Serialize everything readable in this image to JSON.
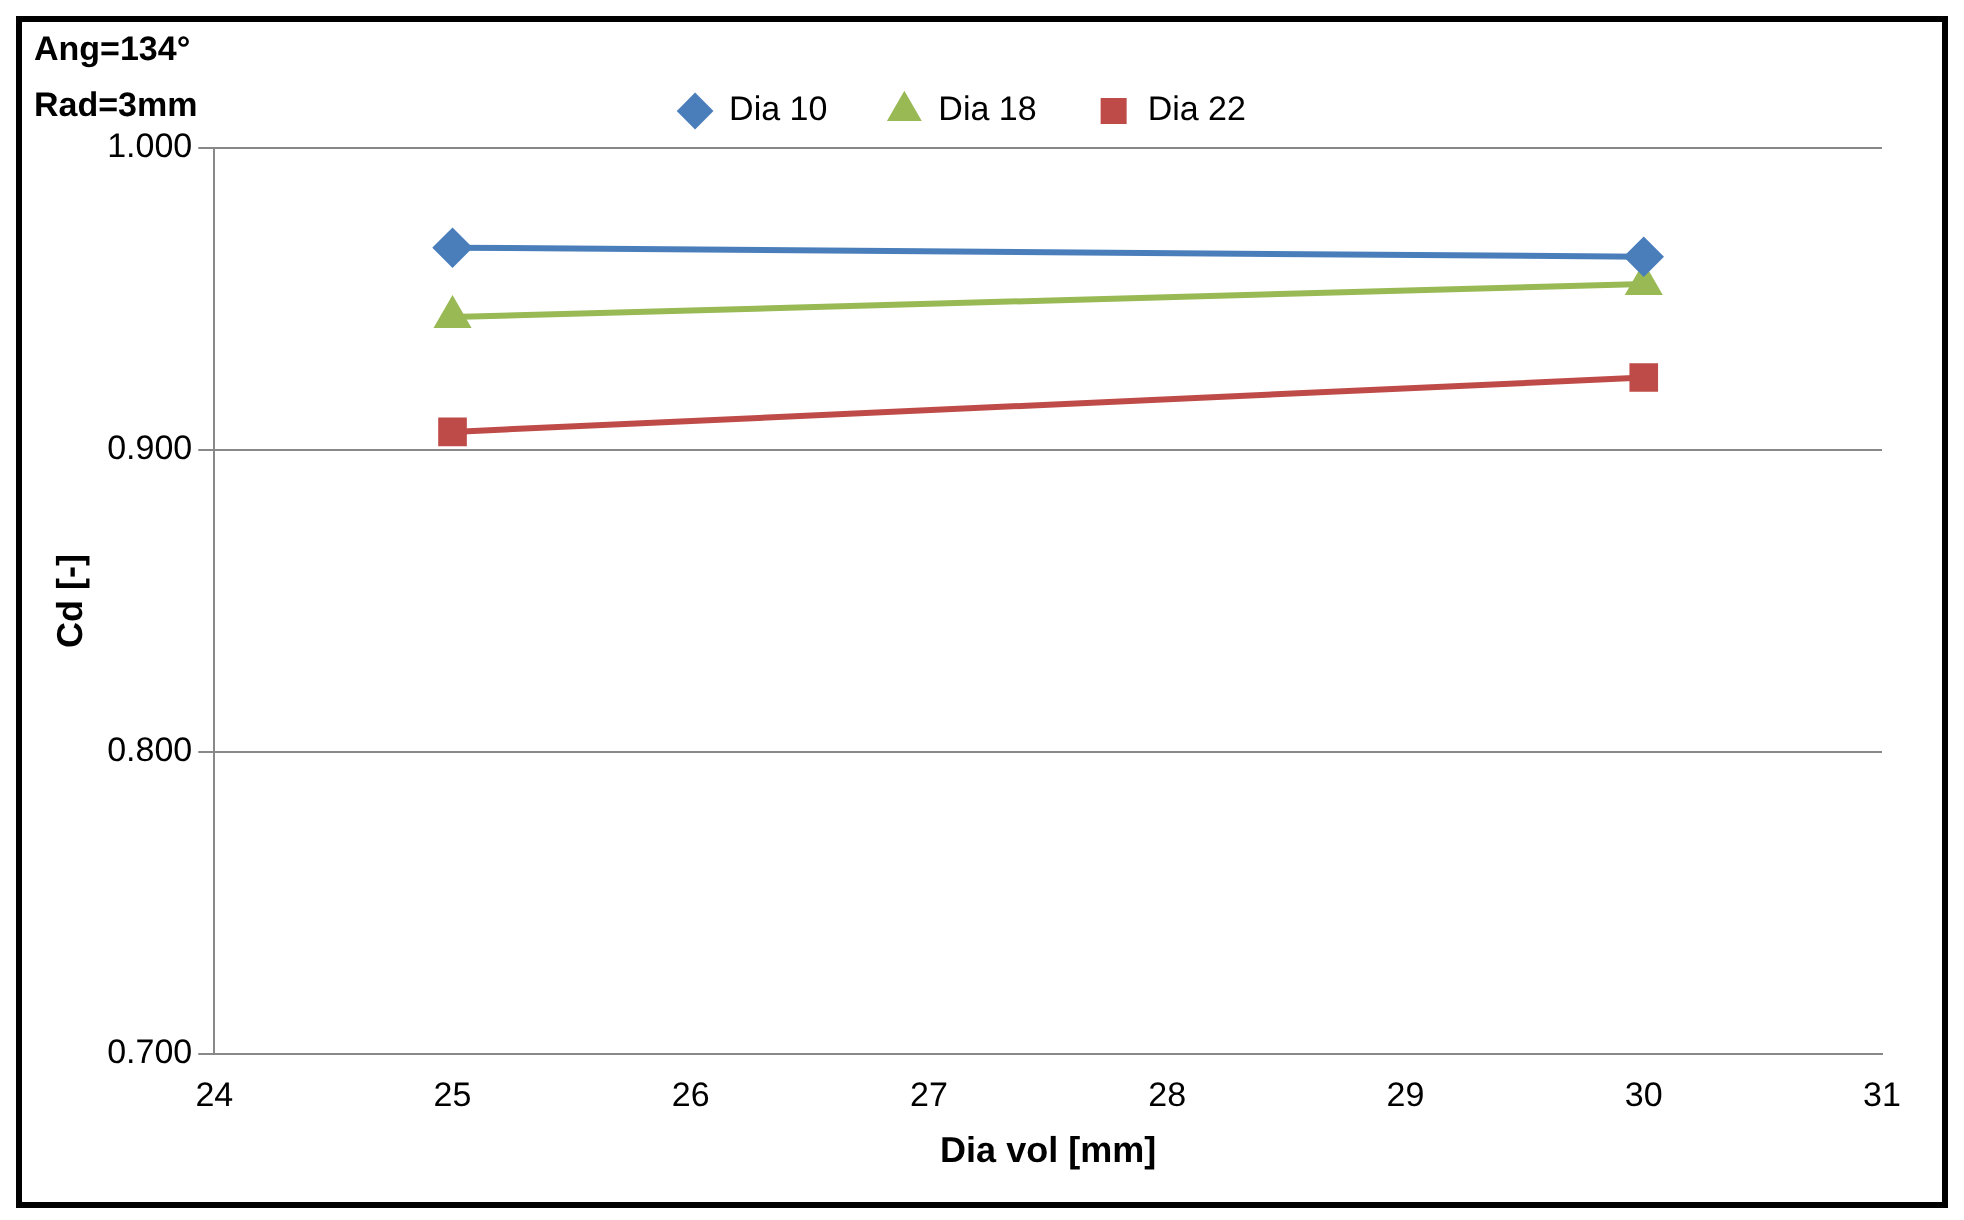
{
  "chart_data": {
    "type": "line",
    "xlabel": "Dia vol [mm]",
    "ylabel": "Cd [-]",
    "annotations": [
      "Ang=134°",
      "Rad=3mm"
    ],
    "x": [
      25,
      30
    ],
    "xlim": [
      24,
      31
    ],
    "xticks": [
      24,
      25,
      26,
      27,
      28,
      29,
      30,
      31
    ],
    "ylim": [
      0.7,
      1.0
    ],
    "yticks": [
      {
        "value": 0.7,
        "label": "0.700"
      },
      {
        "value": 0.8,
        "label": "0.800"
      },
      {
        "value": 0.9,
        "label": "0.900"
      },
      {
        "value": 1.0,
        "label": "1.000"
      }
    ],
    "grid": "y",
    "legend": "top",
    "line_style": "solid",
    "series": [
      {
        "name": "Dia 10",
        "color": "#4a7ebb",
        "marker": "diamond",
        "values": [
          0.967,
          0.964
        ]
      },
      {
        "name": "Dia 18",
        "color": "#98b954",
        "marker": "triangle",
        "values": [
          0.944,
          0.955
        ]
      },
      {
        "name": "Dia 22",
        "color": "#be4b48",
        "marker": "square",
        "values": [
          0.906,
          0.924
        ]
      }
    ]
  }
}
